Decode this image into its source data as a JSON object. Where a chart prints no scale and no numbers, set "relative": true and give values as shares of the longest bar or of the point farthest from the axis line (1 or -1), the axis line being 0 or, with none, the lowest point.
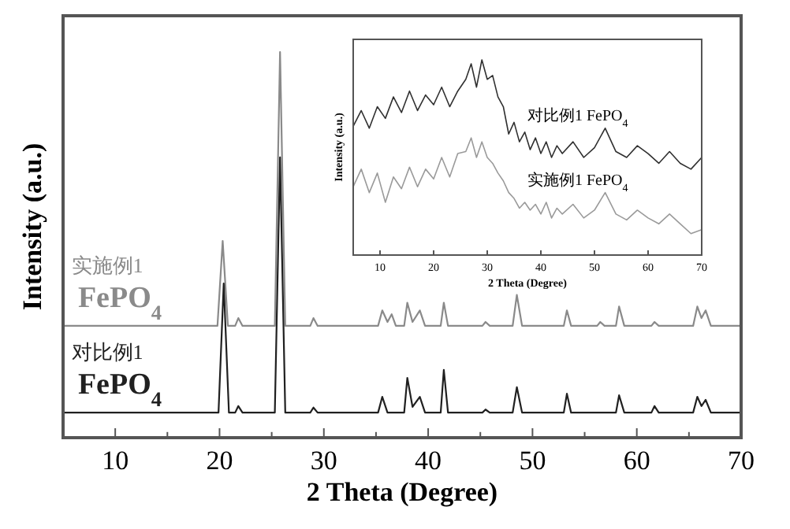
{
  "chart_data": [
    {
      "type": "line",
      "relative": true,
      "xlabel": "2 Theta (Degree)",
      "ylabel": "Intensity (a.u.)",
      "xlim": [
        5,
        70
      ],
      "xticks": [
        10,
        {
          "value": 15,
          "label": null
        },
        20,
        {
          "value": 25,
          "label": null
        },
        30,
        {
          "value": 35,
          "label": null
        },
        40,
        {
          "value": 45,
          "label": null
        },
        50,
        {
          "value": 55,
          "label": null
        },
        60,
        {
          "value": 65,
          "label": null
        },
        70
      ],
      "series": [
        {
          "name": "实施例1 FePO$_{4}$",
          "color": "#8a8a8a",
          "x": [
            5,
            8,
            12,
            15,
            18,
            19.8,
            20.3,
            20.8,
            21.5,
            21.8,
            22.2,
            25.3,
            25.8,
            26.3,
            28.7,
            29,
            29.4,
            35.2,
            35.6,
            36.1,
            36.5,
            36.9,
            37.7,
            38,
            38.5,
            39.2,
            39.7,
            41.2,
            41.5,
            41.9,
            45.2,
            45.5,
            45.9,
            48.1,
            48.5,
            49,
            53,
            53.3,
            53.7,
            56.2,
            56.5,
            56.9,
            58,
            58.3,
            58.8,
            61.4,
            61.7,
            62.1,
            65.4,
            65.8,
            66.2,
            66.6,
            67.1,
            70
          ],
          "values": [
            0.29,
            0.29,
            0.29,
            0.29,
            0.29,
            0.29,
            0.51,
            0.29,
            0.29,
            0.31,
            0.29,
            0.29,
            1.0,
            0.29,
            0.29,
            0.31,
            0.29,
            0.29,
            0.33,
            0.3,
            0.32,
            0.29,
            0.29,
            0.35,
            0.3,
            0.33,
            0.29,
            0.29,
            0.35,
            0.29,
            0.29,
            0.3,
            0.29,
            0.29,
            0.37,
            0.29,
            0.29,
            0.33,
            0.29,
            0.29,
            0.3,
            0.29,
            0.29,
            0.34,
            0.29,
            0.29,
            0.3,
            0.29,
            0.29,
            0.34,
            0.31,
            0.33,
            0.29,
            0.29
          ]
        },
        {
          "name": "对比例1 FePO$_{4}$",
          "color": "#202020",
          "x": [
            5,
            8,
            12,
            15,
            18,
            19.9,
            20.4,
            20.9,
            21.5,
            21.8,
            22.2,
            25.3,
            25.8,
            26.3,
            28.7,
            29,
            29.4,
            35.2,
            35.6,
            36.1,
            37.7,
            38,
            38.5,
            39.2,
            39.7,
            41.2,
            41.5,
            41.9,
            45.2,
            45.5,
            45.9,
            48.1,
            48.5,
            49,
            53,
            53.3,
            53.7,
            58,
            58.3,
            58.8,
            61.4,
            61.7,
            62.1,
            65.4,
            65.8,
            66.2,
            66.6,
            67.1,
            70
          ],
          "values": [
            0.065,
            0.065,
            0.065,
            0.065,
            0.065,
            0.065,
            0.4,
            0.065,
            0.065,
            0.082,
            0.065,
            0.065,
            0.727,
            0.065,
            0.065,
            0.078,
            0.065,
            0.065,
            0.106,
            0.065,
            0.065,
            0.155,
            0.08,
            0.106,
            0.065,
            0.065,
            0.176,
            0.065,
            0.065,
            0.073,
            0.065,
            0.065,
            0.131,
            0.065,
            0.065,
            0.114,
            0.065,
            0.065,
            0.11,
            0.065,
            0.065,
            0.082,
            0.065,
            0.065,
            0.106,
            0.082,
            0.098,
            0.065,
            0.065
          ]
        }
      ]
    },
    {
      "type": "line",
      "relative": true,
      "xlabel": "2 Theta (Degree)",
      "ylabel": "Intensity (a.u.)",
      "xlim": [
        5,
        70
      ],
      "xticks": [
        10,
        20,
        30,
        40,
        50,
        60,
        70
      ],
      "series": [
        {
          "name": "对比例1 FePO$_{4}$",
          "color": "#303030",
          "x": [
            5,
            6.5,
            8,
            9.5,
            11,
            12.5,
            14,
            15.5,
            17,
            18.5,
            20,
            21.5,
            23,
            24.5,
            26,
            27,
            28,
            29,
            30,
            31,
            32,
            33,
            34,
            35,
            36,
            37,
            38,
            39,
            40,
            41,
            42,
            43,
            44,
            46,
            48,
            50,
            52,
            54,
            56,
            58,
            60,
            62,
            64,
            66,
            68,
            70
          ],
          "values": [
            0.66,
            0.74,
            0.65,
            0.76,
            0.7,
            0.81,
            0.73,
            0.84,
            0.74,
            0.82,
            0.77,
            0.86,
            0.76,
            0.84,
            0.9,
            0.98,
            0.86,
            1.0,
            0.9,
            0.92,
            0.81,
            0.76,
            0.62,
            0.68,
            0.58,
            0.63,
            0.54,
            0.6,
            0.52,
            0.58,
            0.5,
            0.56,
            0.52,
            0.58,
            0.5,
            0.55,
            0.65,
            0.53,
            0.5,
            0.56,
            0.52,
            0.47,
            0.53,
            0.47,
            0.44,
            0.5
          ]
        },
        {
          "name": "实施例1 FePO$_{4}$",
          "color": "#9a9a9a",
          "x": [
            5,
            6.5,
            8,
            9.5,
            11,
            12.5,
            14,
            15.5,
            17,
            18.5,
            20,
            21.5,
            23,
            24.5,
            26,
            27,
            28,
            29,
            30,
            31,
            32,
            33,
            34,
            35,
            36,
            37,
            38,
            39,
            40,
            41,
            42,
            43,
            44,
            46,
            48,
            50,
            52,
            54,
            56,
            58,
            60,
            62,
            64,
            66,
            68,
            70
          ],
          "values": [
            0.35,
            0.44,
            0.32,
            0.42,
            0.27,
            0.4,
            0.34,
            0.45,
            0.35,
            0.44,
            0.39,
            0.5,
            0.4,
            0.52,
            0.53,
            0.6,
            0.5,
            0.58,
            0.5,
            0.47,
            0.42,
            0.38,
            0.32,
            0.29,
            0.24,
            0.27,
            0.23,
            0.26,
            0.21,
            0.27,
            0.19,
            0.24,
            0.21,
            0.26,
            0.19,
            0.23,
            0.32,
            0.21,
            0.18,
            0.23,
            0.19,
            0.16,
            0.21,
            0.16,
            0.11,
            0.13
          ]
        }
      ]
    }
  ]
}
